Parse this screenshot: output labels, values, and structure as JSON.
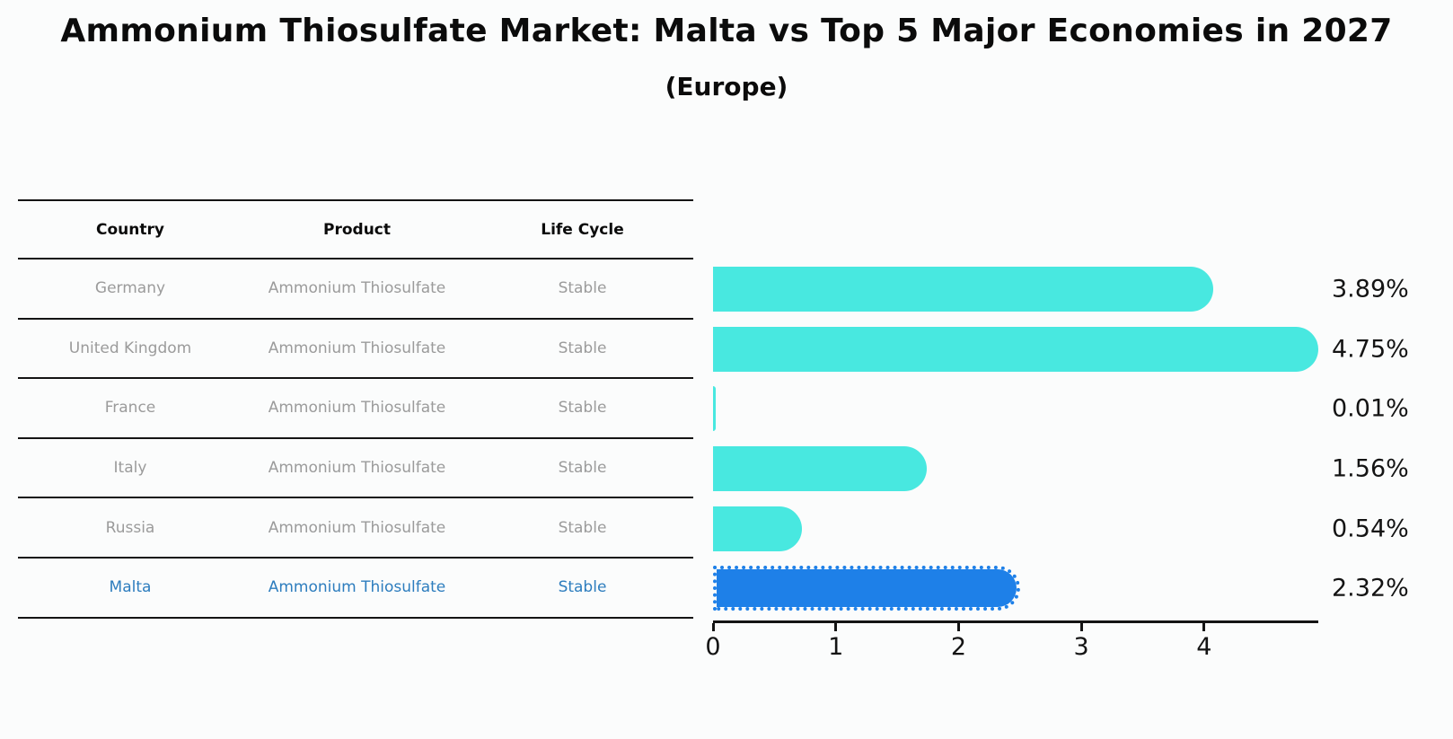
{
  "header": {
    "title": "Ammonium Thiosulfate Market: Malta vs Top 5 Major Economies in 2027",
    "subtitle": "(Europe)"
  },
  "table": {
    "columns": [
      "Country",
      "Product",
      "Life Cycle"
    ],
    "highlight_text_color": "#2d7dbe",
    "rows": [
      {
        "country": "Germany",
        "product": "Ammonium Thiosulfate",
        "life_cycle": "Stable",
        "highlight": false
      },
      {
        "country": "United Kingdom",
        "product": "Ammonium Thiosulfate",
        "life_cycle": "Stable",
        "highlight": false
      },
      {
        "country": "France",
        "product": "Ammonium Thiosulfate",
        "life_cycle": "Stable",
        "highlight": false
      },
      {
        "country": "Italy",
        "product": "Ammonium Thiosulfate",
        "life_cycle": "Stable",
        "highlight": false
      },
      {
        "country": "Russia",
        "product": "Ammonium Thiosulfate",
        "life_cycle": "Stable",
        "highlight": false
      },
      {
        "country": "Malta",
        "product": "Ammonium Thiosulfate",
        "life_cycle": "Stable",
        "highlight": true
      }
    ]
  },
  "chart_data": {
    "type": "bar",
    "orientation": "horizontal",
    "title": "Ammonium Thiosulfate Market: Malta vs Top 5 Major Economies in 2027",
    "subtitle": "(Europe)",
    "categories": [
      "Germany",
      "United Kingdom",
      "France",
      "Italy",
      "Russia",
      "Malta"
    ],
    "values": [
      3.89,
      4.75,
      0.01,
      1.56,
      0.54,
      2.32
    ],
    "labels": [
      "3.89%",
      "4.75%",
      "0.01%",
      "1.56%",
      "0.54%",
      "2.32%"
    ],
    "xlabel": "",
    "ylabel": "",
    "xticks": [
      0,
      1,
      2,
      3,
      4
    ],
    "xlim": [
      0,
      4.93
    ],
    "grid": false,
    "legend": false,
    "bar_color": "#48E8E0",
    "highlight_color": "#1E80E8",
    "highlight_index": 5,
    "highlight_border_style": "dotted"
  }
}
